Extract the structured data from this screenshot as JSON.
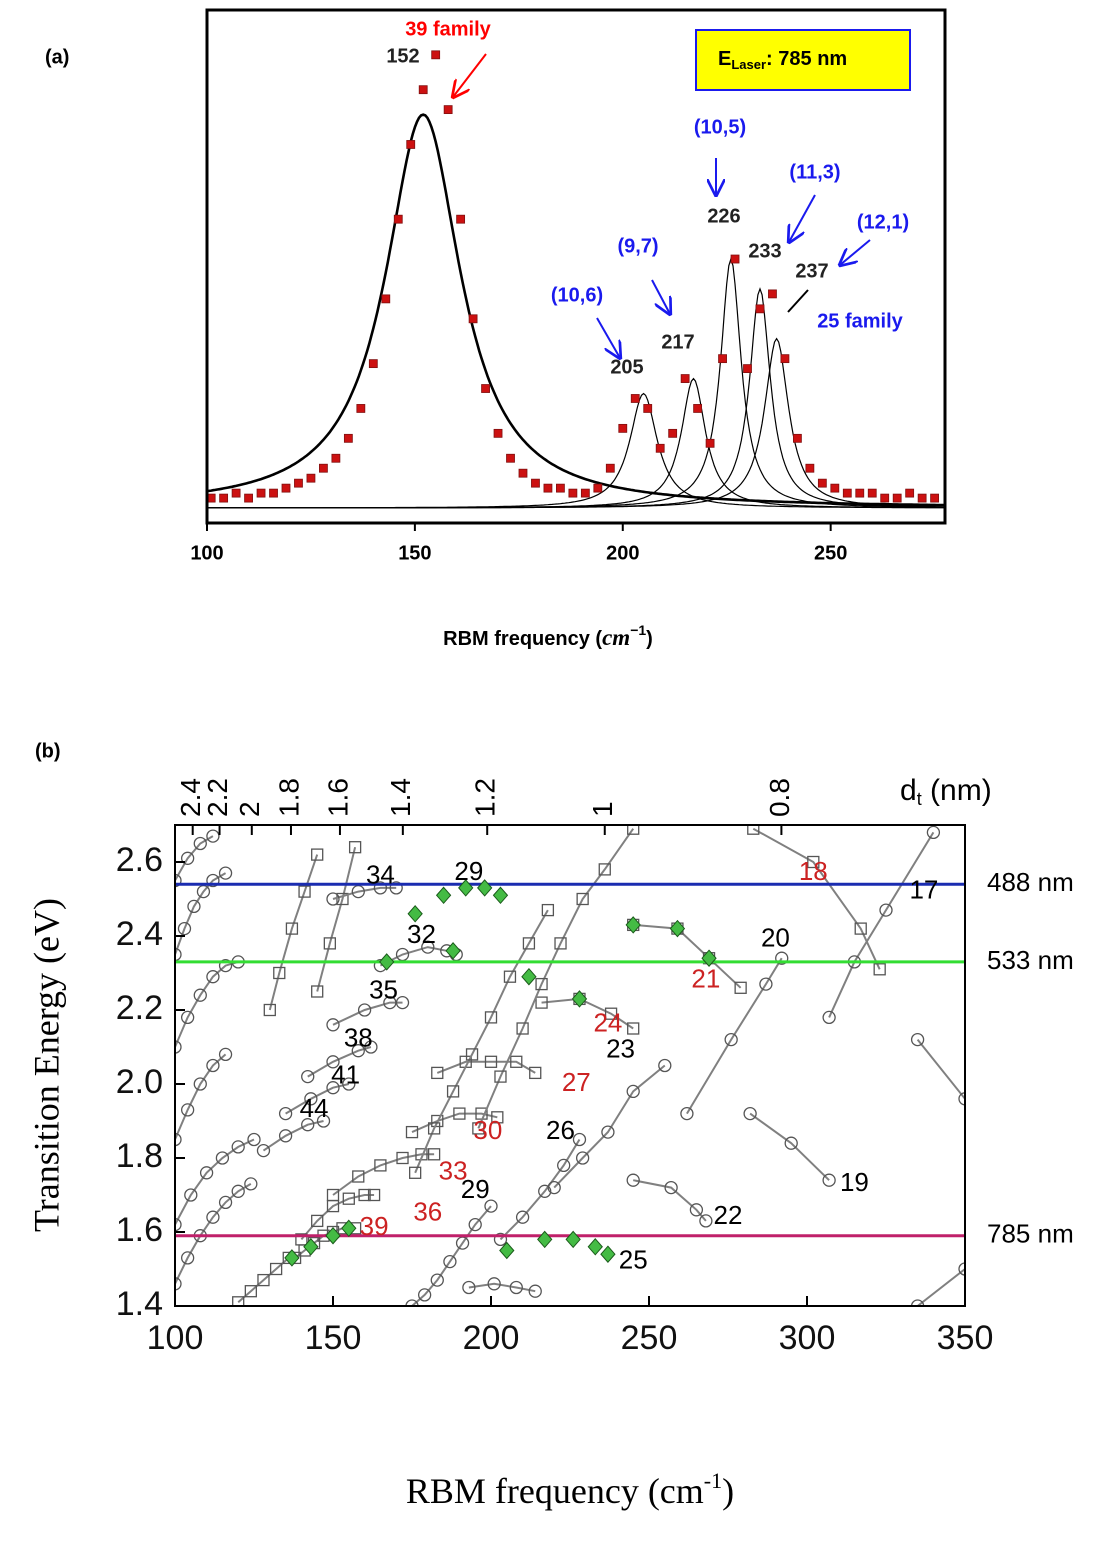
{
  "chart_data": [
    {
      "type": "spectrum",
      "label": "(a)",
      "x_title": {
        "text": "RBM  frequency (",
        "math": "cm",
        "sup": "−1",
        "close": ")"
      },
      "xlim": [
        100,
        277.5
      ],
      "xticks": [
        100,
        150,
        200,
        250
      ],
      "ylim": [
        -3,
        100
      ],
      "x": [
        101,
        104,
        107,
        110,
        113,
        116,
        119,
        122,
        125,
        128,
        131,
        134,
        137,
        140,
        143,
        146,
        149,
        152,
        155,
        158,
        161,
        164,
        167,
        170,
        173,
        176,
        179,
        182,
        185,
        188,
        191,
        194,
        197,
        200,
        203,
        206,
        209,
        212,
        215,
        218,
        221,
        224,
        227,
        230,
        233,
        236,
        239,
        242,
        245,
        248,
        251,
        254,
        257,
        260,
        263,
        266,
        269,
        272,
        275
      ],
      "values": [
        2,
        2,
        3,
        2,
        3,
        3,
        4,
        5,
        6,
        8,
        10,
        14,
        20,
        29,
        42,
        58,
        73,
        84,
        91,
        80,
        58,
        38,
        24,
        15,
        10,
        7,
        5,
        4,
        4,
        3,
        3,
        4,
        8,
        16,
        22,
        20,
        12,
        15,
        26,
        20,
        13,
        30,
        50,
        28,
        40,
        43,
        30,
        14,
        8,
        5,
        4,
        3,
        3,
        3,
        2,
        2,
        3,
        2,
        2
      ],
      "color": "#cc1111",
      "fit": {
        "color": "#000000",
        "centers": [
          152,
          205,
          217,
          226,
          233,
          237
        ],
        "heights": [
          79,
          23,
          26,
          50,
          44,
          34
        ],
        "widths": [
          22,
          8,
          7,
          6,
          6,
          7
        ]
      },
      "annotations": [
        {
          "text": "39 family",
          "color": "#ff0000"
        },
        {
          "text": "(10,6)",
          "color": "#1a1aee"
        },
        {
          "text": "(9,7)",
          "color": "#1a1aee"
        },
        {
          "text": "(10,5)",
          "color": "#1a1aee"
        },
        {
          "text": "(11,3)",
          "color": "#1a1aee"
        },
        {
          "text": "(12,1)",
          "color": "#1a1aee"
        },
        {
          "text": "25 family",
          "color": "#1a1aee"
        }
      ],
      "legend_box": {
        "main": "E",
        "sub": "Laser",
        "rest": ": 785 nm",
        "fill": "#ffff00",
        "border": "#1a1aee"
      }
    },
    {
      "type": "kataura",
      "label": "(b)",
      "x_title": {
        "text": "RBM frequency (cm",
        "sup": "-1",
        "close": ")"
      },
      "y_title": "Transition Energy (eV)",
      "x2_title": {
        "main": "d",
        "sub": "t",
        "rest": " (nm)"
      },
      "xlim": [
        100,
        350
      ],
      "xticks": [
        100,
        150,
        200,
        250,
        300,
        350
      ],
      "ylim": [
        1.4,
        2.7
      ],
      "yticks": [
        1.4,
        1.6,
        1.8,
        {
          "value": 2,
          "label": "2.0"
        },
        2.2,
        2.4,
        2.6
      ],
      "x2ticks": [
        {
          "value": 105.6,
          "label": "2.4"
        },
        {
          "value": 114.1,
          "label": "2.2"
        },
        {
          "value": 124.3,
          "label": "2"
        },
        {
          "value": 136.7,
          "label": "1.8"
        },
        {
          "value": 152.2,
          "label": "1.6"
        },
        {
          "value": 172.1,
          "label": "1.4"
        },
        {
          "value": 198.8,
          "label": "1.2"
        },
        {
          "value": 236,
          "label": "1"
        },
        {
          "value": 291.9,
          "label": "0.8"
        }
      ],
      "line_color": "#808080",
      "branches": [
        {
          "marker": "square",
          "x": [
            138,
            141,
            144,
            147,
            150,
            153,
            157
          ],
          "y": [
            1.53,
            1.55,
            1.57,
            1.59,
            1.6,
            1.61,
            1.61
          ]
        },
        {
          "marker": "square",
          "x": [
            120,
            124,
            128,
            132,
            136
          ],
          "y": [
            1.41,
            1.44,
            1.47,
            1.5,
            1.53
          ]
        },
        {
          "marker": "square",
          "x": [
            140,
            145,
            150,
            155,
            160,
            163
          ],
          "y": [
            1.58,
            1.63,
            1.67,
            1.69,
            1.7,
            1.7
          ]
        },
        {
          "marker": "square",
          "x": [
            150,
            158,
            165,
            172,
            178,
            182
          ],
          "y": [
            1.7,
            1.75,
            1.78,
            1.8,
            1.81,
            1.81
          ]
        },
        {
          "marker": "square",
          "x": [
            175,
            183,
            190,
            197,
            202
          ],
          "y": [
            1.87,
            1.9,
            1.92,
            1.92,
            1.91
          ]
        },
        {
          "marker": "square",
          "x": [
            183,
            192,
            200,
            208,
            214
          ],
          "y": [
            2.03,
            2.06,
            2.06,
            2.06,
            2.03
          ]
        },
        {
          "marker": "square",
          "x": [
            216,
            228,
            238,
            245
          ],
          "y": [
            2.22,
            2.23,
            2.19,
            2.15
          ]
        },
        {
          "marker": "square",
          "x": [
            245,
            259,
            269,
            279
          ],
          "y": [
            2.43,
            2.42,
            2.34,
            2.26
          ]
        },
        {
          "marker": "square",
          "x": [
            283,
            302,
            317,
            323
          ],
          "y": [
            2.69,
            2.6,
            2.42,
            2.31
          ]
        },
        {
          "marker": "square",
          "x": [
            176,
            182,
            188,
            194,
            200,
            206,
            212,
            218
          ],
          "y": [
            1.76,
            1.88,
            1.98,
            2.08,
            2.18,
            2.29,
            2.38,
            2.47
          ]
        },
        {
          "marker": "square",
          "x": [
            196,
            203,
            210,
            216,
            222,
            229,
            236,
            245
          ],
          "y": [
            1.88,
            2.02,
            2.15,
            2.27,
            2.38,
            2.5,
            2.58,
            2.69
          ]
        },
        {
          "marker": "square",
          "x": [
            130,
            133,
            137,
            141,
            145
          ],
          "y": [
            2.2,
            2.3,
            2.42,
            2.52,
            2.62
          ]
        },
        {
          "marker": "square",
          "x": [
            145,
            149,
            153,
            157
          ],
          "y": [
            2.25,
            2.38,
            2.5,
            2.64
          ]
        },
        {
          "marker": "circle",
          "x": [
            175,
            179,
            183,
            187,
            191,
            195,
            200
          ],
          "y": [
            1.4,
            1.43,
            1.47,
            1.52,
            1.57,
            1.62,
            1.67
          ]
        },
        {
          "marker": "circle",
          "x": [
            193,
            201,
            208,
            214
          ],
          "y": [
            1.45,
            1.46,
            1.45,
            1.44
          ]
        },
        {
          "marker": "circle",
          "x": [
            203,
            210,
            217,
            223,
            228
          ],
          "y": [
            1.58,
            1.64,
            1.71,
            1.78,
            1.85
          ]
        },
        {
          "marker": "circle",
          "x": [
            220,
            229,
            237,
            245,
            255
          ],
          "y": [
            1.72,
            1.8,
            1.87,
            1.98,
            2.05
          ]
        },
        {
          "marker": "circle",
          "x": [
            262,
            276,
            287,
            292
          ],
          "y": [
            1.92,
            2.12,
            2.27,
            2.34
          ]
        },
        {
          "marker": "circle",
          "x": [
            307,
            315,
            325,
            340
          ],
          "y": [
            2.18,
            2.33,
            2.47,
            2.68
          ]
        },
        {
          "marker": "circle",
          "x": [
            245,
            257,
            265,
            268
          ],
          "y": [
            1.74,
            1.72,
            1.66,
            1.63
          ]
        },
        {
          "marker": "circle",
          "x": [
            282,
            295,
            307
          ],
          "y": [
            1.92,
            1.84,
            1.74
          ]
        },
        {
          "marker": "circle",
          "x": [
            335,
            350
          ],
          "y": [
            1.4,
            1.5
          ]
        },
        {
          "marker": "circle",
          "x": [
            335,
            350
          ],
          "y": [
            2.12,
            1.96
          ]
        },
        {
          "marker": "circle",
          "x": [
            165,
            172,
            180,
            186,
            189
          ],
          "y": [
            2.32,
            2.35,
            2.37,
            2.36,
            2.35
          ]
        },
        {
          "marker": "circle",
          "x": [
            150,
            158,
            165,
            170
          ],
          "y": [
            2.5,
            2.52,
            2.53,
            2.53
          ]
        },
        {
          "marker": "circle",
          "x": [
            150,
            160,
            168,
            172
          ],
          "y": [
            2.16,
            2.2,
            2.22,
            2.22
          ]
        },
        {
          "marker": "circle",
          "x": [
            142,
            150,
            158,
            162
          ],
          "y": [
            2.02,
            2.06,
            2.09,
            2.1
          ]
        },
        {
          "marker": "circle",
          "x": [
            135,
            143,
            150,
            155
          ],
          "y": [
            1.92,
            1.96,
            1.99,
            2.0
          ]
        },
        {
          "marker": "circle",
          "x": [
            128,
            135,
            142,
            147
          ],
          "y": [
            1.82,
            1.86,
            1.89,
            1.9
          ]
        },
        {
          "marker": "circle",
          "x": [
            100,
            104,
            108,
            112,
            116,
            120,
            124
          ],
          "y": [
            1.46,
            1.53,
            1.59,
            1.64,
            1.68,
            1.71,
            1.73
          ]
        },
        {
          "marker": "circle",
          "x": [
            100,
            105,
            110,
            115,
            120,
            125
          ],
          "y": [
            1.62,
            1.7,
            1.76,
            1.8,
            1.83,
            1.85
          ]
        },
        {
          "marker": "circle",
          "x": [
            100,
            104,
            108,
            112,
            116
          ],
          "y": [
            1.85,
            1.93,
            2.0,
            2.05,
            2.08
          ]
        },
        {
          "marker": "circle",
          "x": [
            100,
            104,
            108,
            112,
            116,
            120
          ],
          "y": [
            2.1,
            2.18,
            2.24,
            2.29,
            2.32,
            2.33
          ]
        },
        {
          "marker": "circle",
          "x": [
            100,
            103,
            106,
            109,
            112,
            116
          ],
          "y": [
            2.35,
            2.42,
            2.48,
            2.52,
            2.55,
            2.57
          ]
        },
        {
          "marker": "circle",
          "x": [
            100,
            104,
            108,
            112
          ],
          "y": [
            2.55,
            2.61,
            2.65,
            2.67
          ]
        }
      ],
      "resonant": {
        "color": "#44bb44",
        "x": [
          137,
          143,
          150,
          155,
          205,
          217,
          226,
          233,
          237,
          185,
          192,
          198,
          203,
          167,
          188,
          176,
          212,
          228,
          245,
          259,
          269
        ],
        "y": [
          1.53,
          1.56,
          1.59,
          1.61,
          1.55,
          1.58,
          1.58,
          1.56,
          1.54,
          2.51,
          2.53,
          2.53,
          2.51,
          2.33,
          2.36,
          2.46,
          2.29,
          2.23,
          2.43,
          2.42,
          2.34
        ]
      },
      "family_labels": [
        {
          "text": "18",
          "color": "#cc2222",
          "x": 302,
          "y": 2.57
        },
        {
          "text": "21",
          "color": "#cc2222",
          "x": 268,
          "y": 2.28
        },
        {
          "text": "24",
          "color": "#cc2222",
          "x": 237,
          "y": 2.16
        },
        {
          "text": "27",
          "color": "#cc2222",
          "x": 227,
          "y": 2.0
        },
        {
          "text": "30",
          "color": "#cc2222",
          "x": 199,
          "y": 1.87
        },
        {
          "text": "33",
          "color": "#cc2222",
          "x": 188,
          "y": 1.76
        },
        {
          "text": "36",
          "color": "#cc2222",
          "x": 180,
          "y": 1.65
        },
        {
          "text": "39",
          "color": "#cc2222",
          "x": 163,
          "y": 1.61
        },
        {
          "text": "17",
          "color": "#000000",
          "x": 337,
          "y": 2.52
        },
        {
          "text": "20",
          "color": "#000000",
          "x": 290,
          "y": 2.39
        },
        {
          "text": "23",
          "color": "#000000",
          "x": 241,
          "y": 2.09
        },
        {
          "text": "26",
          "color": "#000000",
          "x": 222,
          "y": 1.87
        },
        {
          "text": "29",
          "color": "#000000",
          "x": 195,
          "y": 1.71
        },
        {
          "text": "22",
          "color": "#000000",
          "x": 275,
          "y": 1.64
        },
        {
          "text": "19",
          "color": "#000000",
          "x": 315,
          "y": 1.73
        },
        {
          "text": "25",
          "color": "#000000",
          "x": 245,
          "y": 1.52
        },
        {
          "text": "29",
          "color": "#000000",
          "x": 193,
          "y": 2.57
        },
        {
          "text": "34",
          "color": "#000000",
          "x": 165,
          "y": 2.56
        },
        {
          "text": "32",
          "color": "#000000",
          "x": 178,
          "y": 2.4
        },
        {
          "text": "35",
          "color": "#000000",
          "x": 166,
          "y": 2.25
        },
        {
          "text": "38",
          "color": "#000000",
          "x": 158,
          "y": 2.12
        },
        {
          "text": "41",
          "color": "#000000",
          "x": 154,
          "y": 2.02
        },
        {
          "text": "44",
          "color": "#000000",
          "x": 144,
          "y": 1.93
        }
      ],
      "laser_lines": [
        {
          "name": "488 nm",
          "value": 2.54,
          "color": "#1a2cb0"
        },
        {
          "name": "533 nm",
          "value": 2.33,
          "color": "#33dd33"
        },
        {
          "name": "785 nm",
          "value": 1.59,
          "color": "#c0206a"
        }
      ]
    }
  ]
}
